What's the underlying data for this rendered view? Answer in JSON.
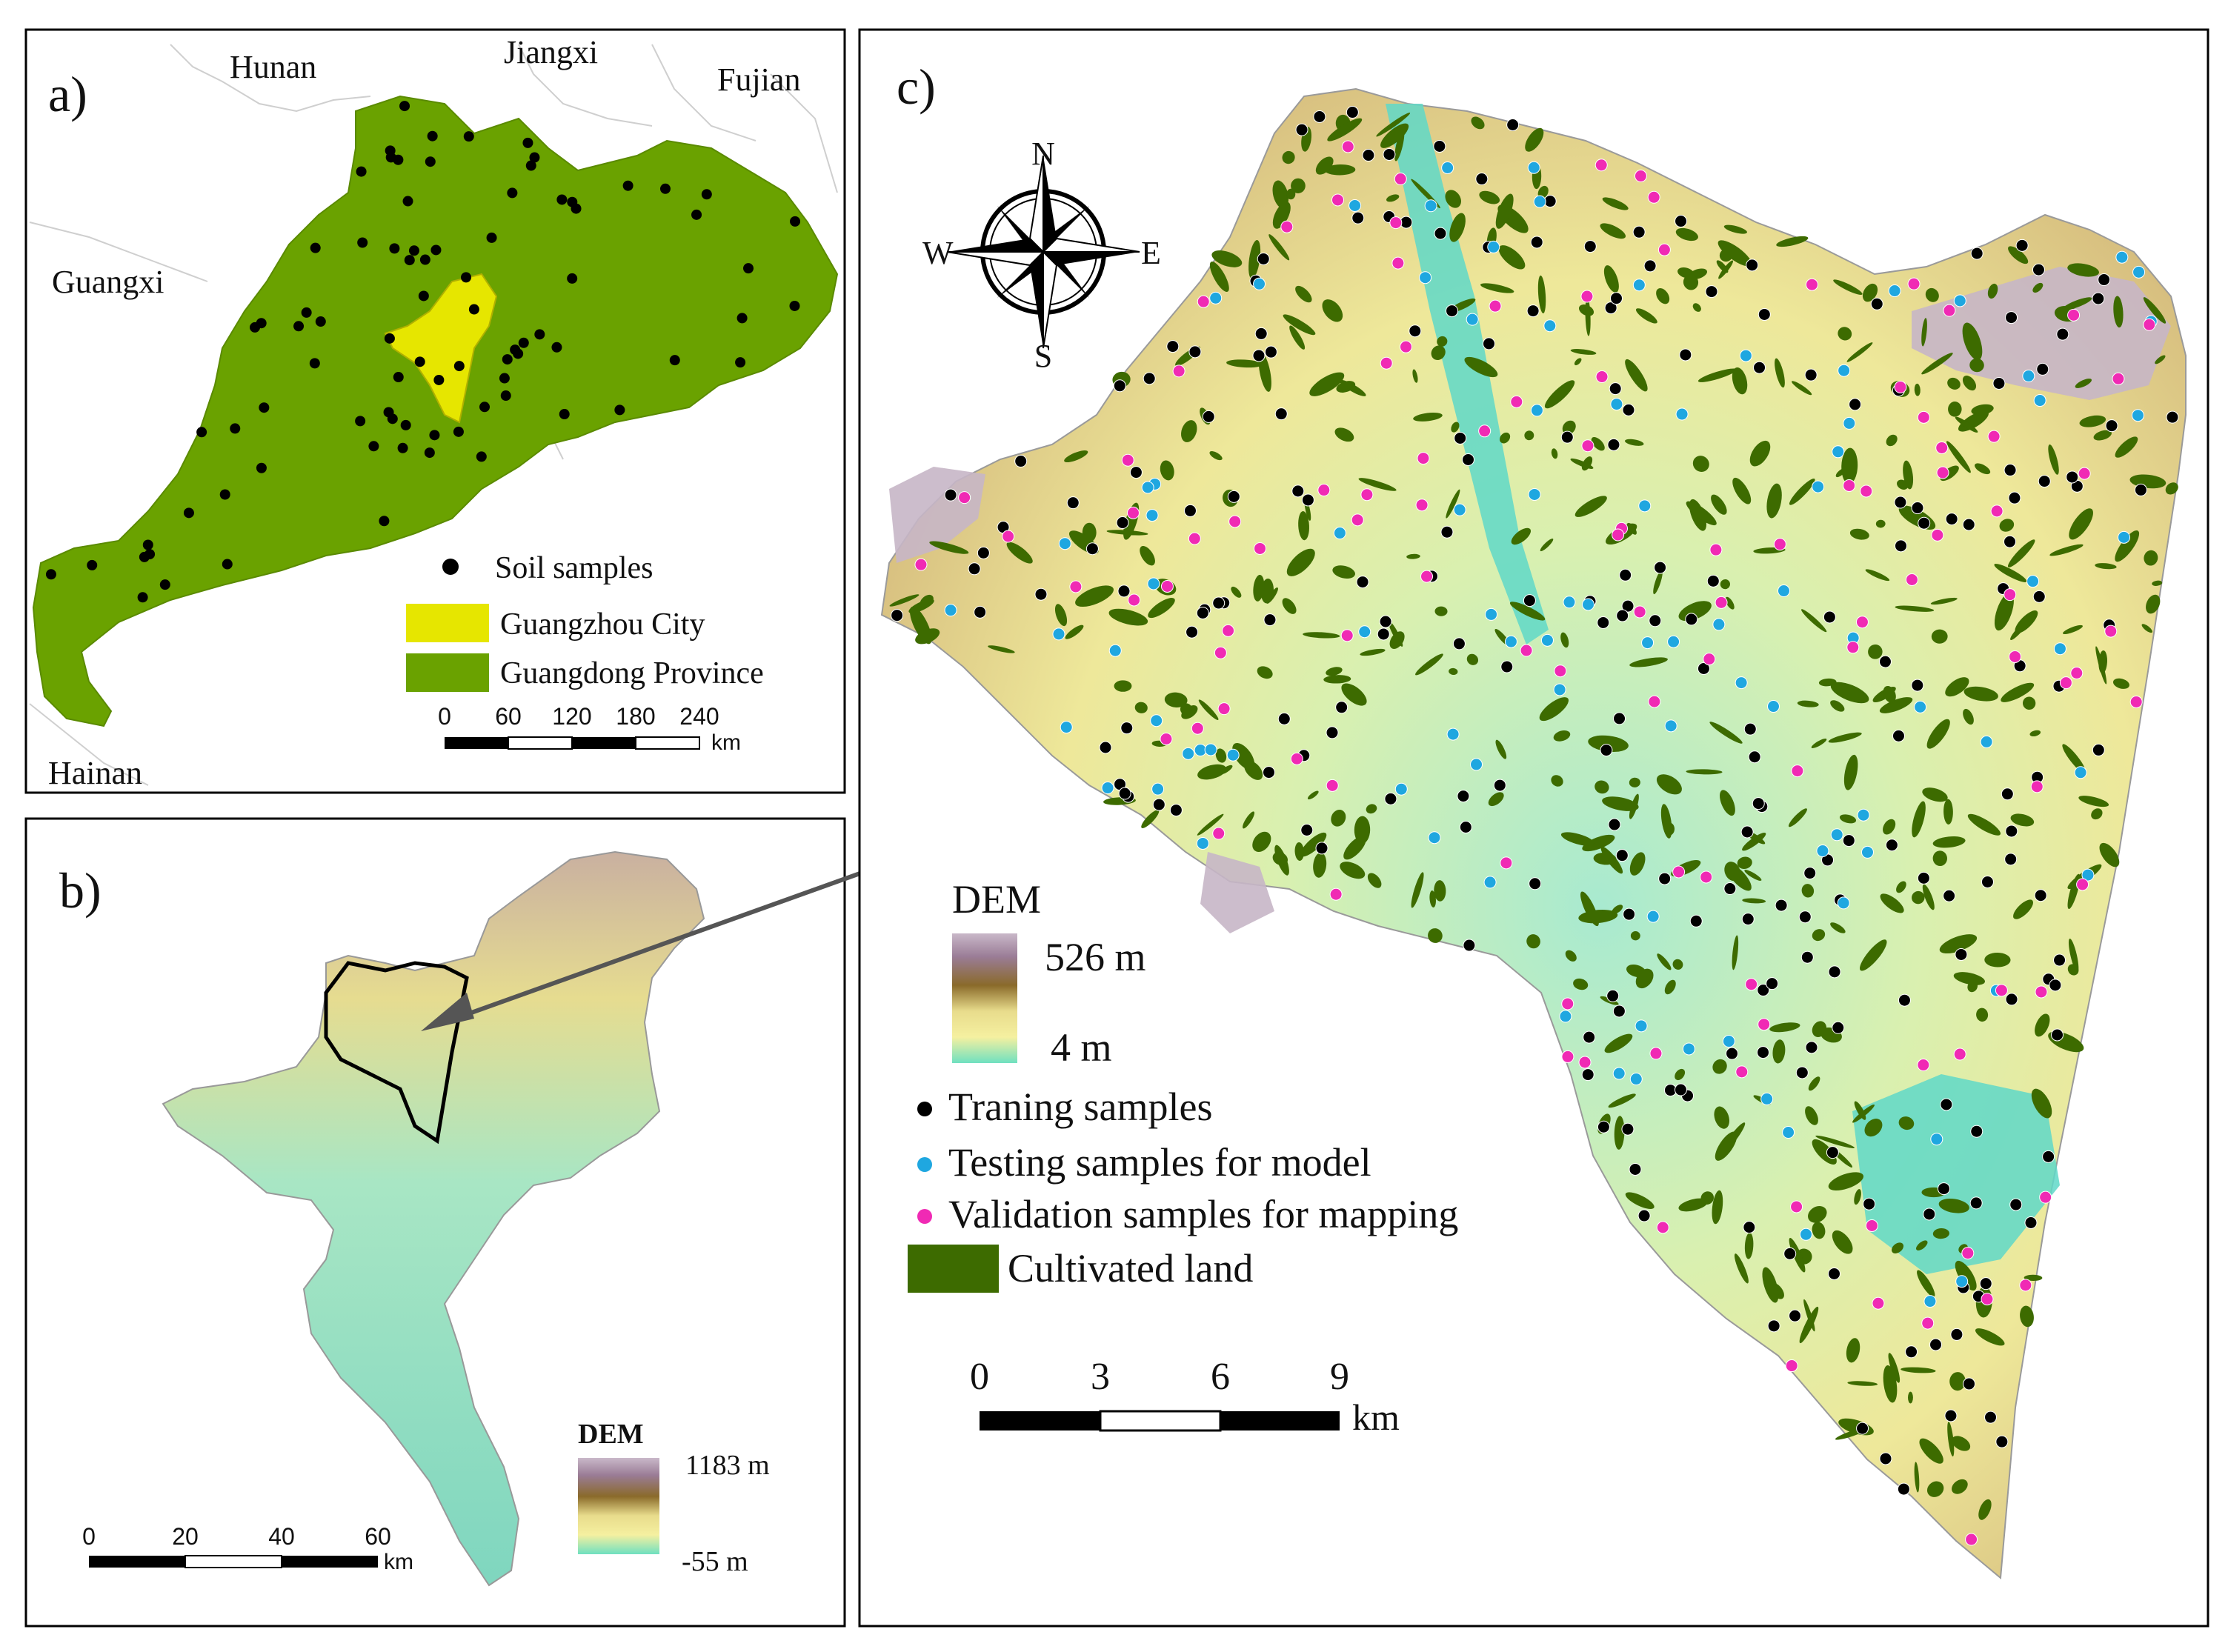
{
  "panel_a": {
    "letter": "a)",
    "regions": [
      "Hunan",
      "Jiangxi",
      "Fujian",
      "Guangxi",
      "Hainan"
    ],
    "legend": {
      "samples": "Soil samples",
      "city": "Guangzhou City",
      "province": "Guangdong Province"
    },
    "scale": {
      "ticks": [
        "0",
        "60",
        "120",
        "180",
        "240"
      ],
      "unit": "km"
    },
    "colors": {
      "province": "#6aa200",
      "city": "#e6e600",
      "sample": "#000000"
    }
  },
  "panel_b": {
    "letter": "b)",
    "legend": {
      "title": "DEM",
      "max": "1183 m",
      "min": "-55 m"
    },
    "scale": {
      "ticks": [
        "0",
        "20",
        "40",
        "60"
      ],
      "unit": "km"
    }
  },
  "panel_c": {
    "letter": "c)",
    "compass": {
      "n": "N",
      "s": "S",
      "e": "E",
      "w": "W"
    },
    "legend": {
      "title": "DEM",
      "max": "526 m",
      "min": "4 m",
      "training": "Traning samples",
      "testing": "Testing samples for model",
      "validation": "Validation samples for mapping",
      "cultivated": "Cultivated land"
    },
    "scale": {
      "ticks": [
        "0",
        "3",
        "6",
        "9"
      ],
      "unit": "km"
    },
    "colors": {
      "training": "#000000",
      "testing": "#1fa7e0",
      "validation": "#f02ab4",
      "cultivated": "#3d6b00"
    }
  }
}
